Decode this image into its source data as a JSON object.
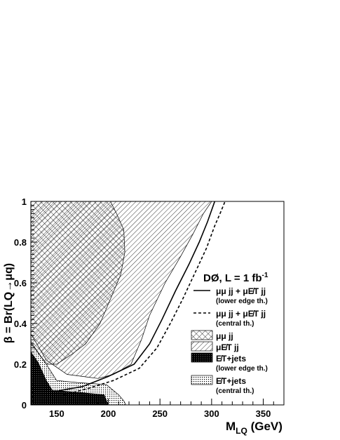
{
  "chart_data": {
    "type": "area",
    "title": "",
    "experiment_label": "DØ, L = 1 fb",
    "experiment_label_sup": "-1",
    "xlabel": "M",
    "xlabel_sub": "LQ",
    "xlabel_unit": " (GeV)",
    "ylabel": "β = Br(LQ→μq)",
    "xlim": [
      125,
      370
    ],
    "ylim": [
      0,
      1
    ],
    "x_ticks": [
      150,
      200,
      250,
      300,
      350
    ],
    "y_ticks": [
      0,
      0.2,
      0.4,
      0.6,
      0.8,
      1
    ],
    "x_tick_labels": [
      "150",
      "200",
      "250",
      "300",
      "350"
    ],
    "y_tick_labels": [
      "0",
      "0.2",
      "0.4",
      "0.6",
      "0.8",
      "1"
    ],
    "grid": false,
    "legend_position": "right",
    "legend": [
      {
        "key": "combined_lower",
        "symbol": "solid-line",
        "label": "μμ jj + μE̸T jj",
        "sublabel": "(lower edge th.)"
      },
      {
        "key": "combined_central",
        "symbol": "dashed-line",
        "label": "μμ jj + μE̸T jj",
        "sublabel": "(central th.)"
      },
      {
        "key": "mumu",
        "symbol": "crosshatch-box",
        "label": "μμ jj",
        "sublabel": ""
      },
      {
        "key": "munu",
        "symbol": "diagonal-hatch-box",
        "label": "μE̸T jj",
        "sublabel": ""
      },
      {
        "key": "met_lower",
        "symbol": "filled-black-box",
        "label": "E̸T+jets",
        "sublabel": "(lower edge th.)"
      },
      {
        "key": "met_central",
        "symbol": "dotted-box",
        "label": "E̸T+jets",
        "sublabel": "(central th.)"
      }
    ],
    "series": [
      {
        "key": "munu",
        "style": "diagonal-hatch-area",
        "boundary": [
          [
            125,
            0.35
          ],
          [
            140,
            0.22
          ],
          [
            160,
            0.15
          ],
          [
            190,
            0.13
          ],
          [
            205,
            0.15
          ],
          [
            222,
            0.2
          ],
          [
            232,
            0.32
          ],
          [
            240,
            0.44
          ],
          [
            255,
            0.6
          ],
          [
            270,
            0.73
          ],
          [
            282,
            0.84
          ],
          [
            292,
            0.94
          ],
          [
            300,
            1.0
          ]
        ]
      },
      {
        "key": "mumu",
        "style": "crosshatch-area",
        "boundary": [
          [
            125,
            0.3
          ],
          [
            130,
            0.27
          ],
          [
            140,
            0.2
          ],
          [
            150,
            0.2
          ],
          [
            165,
            0.25
          ],
          [
            178,
            0.3
          ],
          [
            192,
            0.4
          ],
          [
            202,
            0.52
          ],
          [
            212,
            0.64
          ],
          [
            216,
            0.75
          ],
          [
            215,
            0.86
          ],
          [
            208,
            0.94
          ],
          [
            202,
            1.0
          ]
        ]
      },
      {
        "key": "met_central",
        "style": "dotted-area",
        "boundary": [
          [
            125,
            0.31
          ],
          [
            140,
            0.2
          ],
          [
            150,
            0.12
          ],
          [
            170,
            0.11
          ],
          [
            198,
            0.1
          ],
          [
            210,
            0.05
          ],
          [
            215,
            0.02
          ],
          [
            217,
            0.0
          ]
        ]
      },
      {
        "key": "met_lower",
        "style": "filled-black-area",
        "boundary": [
          [
            125,
            0.26
          ],
          [
            132,
            0.21
          ],
          [
            140,
            0.12
          ],
          [
            146,
            0.07
          ],
          [
            152,
            0.07
          ],
          [
            175,
            0.06
          ],
          [
            196,
            0.05
          ],
          [
            200,
            0.0
          ]
        ]
      },
      {
        "key": "combined_lower",
        "style": "solid-line",
        "points": [
          [
            152,
            0.07
          ],
          [
            175,
            0.09
          ],
          [
            200,
            0.14
          ],
          [
            225,
            0.2
          ],
          [
            240,
            0.3
          ],
          [
            252,
            0.42
          ],
          [
            265,
            0.56
          ],
          [
            278,
            0.69
          ],
          [
            288,
            0.8
          ],
          [
            296,
            0.9
          ],
          [
            303,
            1.0
          ]
        ]
      },
      {
        "key": "combined_central",
        "style": "dashed-line",
        "points": [
          [
            157,
            0.05
          ],
          [
            180,
            0.08
          ],
          [
            205,
            0.12
          ],
          [
            230,
            0.18
          ],
          [
            247,
            0.28
          ],
          [
            260,
            0.4
          ],
          [
            272,
            0.52
          ],
          [
            284,
            0.65
          ],
          [
            295,
            0.77
          ],
          [
            303,
            0.88
          ],
          [
            309,
            0.95
          ],
          [
            313,
            1.0
          ]
        ]
      }
    ]
  }
}
